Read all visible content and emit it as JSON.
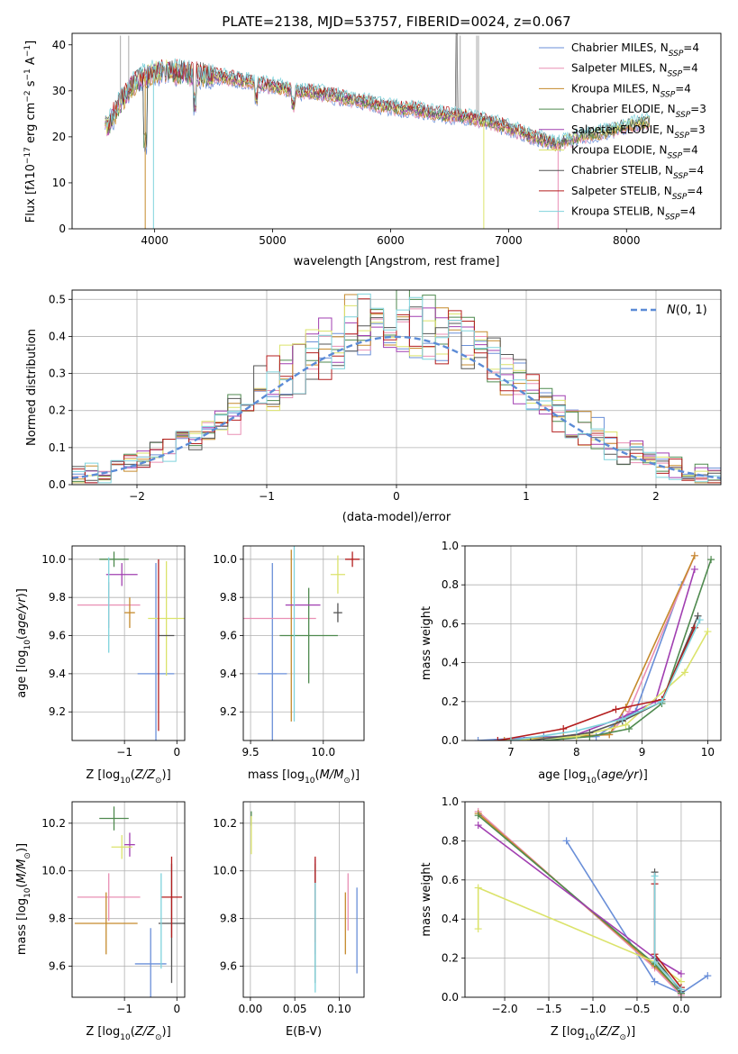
{
  "figure": {
    "title": "PLATE=2138, MJD=53757, FIBERID=0024, z=0.067"
  },
  "colors": [
    "#6a8fd8",
    "#e98fb4",
    "#c58a2c",
    "#4f8a4f",
    "#a13fb1",
    "#dbe36b",
    "#555555",
    "#b41e1e",
    "#7fd3dc"
  ],
  "chart_data": [
    {
      "id": "spectrum",
      "type": "line",
      "xlabel": "wavelength [Angstrom, rest frame]",
      "ylabel": "Flux [fλ10⁻¹⁷ erg cm⁻² s⁻¹ A⁻¹]",
      "xlim": [
        3300,
        8800
      ],
      "ylim": [
        0,
        42.5
      ],
      "xticks": [
        4000,
        5000,
        6000,
        7000,
        8000
      ],
      "yticks": [
        0,
        10,
        20,
        30,
        40
      ],
      "grid": false,
      "legend_position": "top-right",
      "continuum_x": [
        3600,
        3700,
        3800,
        3900,
        4000,
        4100,
        4200,
        4400,
        4600,
        4800,
        5000,
        5200,
        5400,
        5600,
        5800,
        6000,
        6200,
        6400,
        6600,
        6800,
        7000,
        7200,
        7400,
        7600,
        7800,
        8000,
        8200,
        8400
      ],
      "continuum_y": [
        22,
        27,
        31,
        33,
        34,
        34.5,
        34,
        33.5,
        33,
        32,
        31,
        30,
        29.5,
        28.5,
        27.5,
        26.5,
        26,
        25,
        24.5,
        23.5,
        22,
        20,
        18.5,
        20,
        21,
        22.5,
        23.5,
        24
      ],
      "series": [
        {
          "name": "Chabrier MILES, NSSP=4",
          "name_main": "Chabrier MILES, N",
          "name_sub": "SSP",
          "name_tail": "=4"
        },
        {
          "name": "Salpeter MILES, NSSP=4",
          "name_main": "Salpeter MILES, N",
          "name_sub": "SSP",
          "name_tail": "=4"
        },
        {
          "name": "Kroupa MILES, NSSP=4",
          "name_main": "Kroupa MILES, N",
          "name_sub": "SSP",
          "name_tail": "=4"
        },
        {
          "name": "Chabrier ELODIE, NSSP=3",
          "name_main": "Chabrier ELODIE, N",
          "name_sub": "SSP",
          "name_tail": "=3"
        },
        {
          "name": "Salpeter ELODIE, NSSP=3",
          "name_main": "Salpeter ELODIE, N",
          "name_sub": "SSP",
          "name_tail": "=3"
        },
        {
          "name": "Kroupa ELODIE, NSSP=4",
          "name_main": "Kroupa ELODIE, N",
          "name_sub": "SSP",
          "name_tail": "=4"
        },
        {
          "name": "Chabrier STELIB, NSSP=4",
          "name_main": "Chabrier STELIB, N",
          "name_sub": "SSP",
          "name_tail": "=4"
        },
        {
          "name": "Salpeter STELIB, NSSP=4",
          "name_main": "Salpeter STELIB, N",
          "name_sub": "SSP",
          "name_tail": "=4"
        },
        {
          "name": "Kroupa STELIB, NSSP=4",
          "name_main": "Kroupa STELIB, N",
          "name_sub": "SSP",
          "name_tail": "=4"
        }
      ]
    },
    {
      "id": "residuals",
      "type": "line",
      "xlabel": "(data-model)/error",
      "ylabel": "Normed distribution",
      "xlim": [
        -2.5,
        2.5
      ],
      "ylim": [
        0,
        0.525
      ],
      "xticks": [
        -2,
        -1,
        0,
        1,
        2
      ],
      "yticks": [
        0.0,
        0.1,
        0.2,
        0.3,
        0.4,
        0.5
      ],
      "grid": true,
      "legend_position": "top-right",
      "reference_curve": {
        "name": "N(0,1)",
        "mu": 0,
        "sigma": 1
      },
      "bin_width": 0.1
    },
    {
      "id": "age-z",
      "type": "scatter",
      "xlabel": "Z [log10(Z/Z⊙)]",
      "ylabel": "age [log10(age/yr)]",
      "xlim": [
        -2.0,
        0.15
      ],
      "ylim": [
        9.05,
        10.07
      ],
      "xticks": [
        -1,
        0
      ],
      "yticks": [
        9.2,
        9.4,
        9.6,
        9.8,
        10.0
      ],
      "grid": true,
      "points": [
        {
          "x": -0.4,
          "y": 9.4,
          "xerr": 0.35,
          "yerr": 0.58
        },
        {
          "x": -1.3,
          "y": 9.76,
          "xerr": 0.6,
          "yerr": 0.12
        },
        {
          "x": -0.9,
          "y": 9.72,
          "xerr": 0.1,
          "yerr": 0.08
        },
        {
          "x": -1.2,
          "y": 10.0,
          "xerr": 0.28,
          "yerr": 0.04
        },
        {
          "x": -1.05,
          "y": 9.92,
          "xerr": 0.3,
          "yerr": 0.06
        },
        {
          "x": -0.2,
          "y": 9.69,
          "xerr": 0.35,
          "yerr": 0.3
        },
        {
          "x": -0.2,
          "y": 9.6,
          "xerr": 0.15,
          "yerr": 0.0
        },
        {
          "x": -0.35,
          "y": 9.55,
          "xerr": 0.0,
          "yerr": 0.45
        },
        {
          "x": -1.3,
          "y": 9.76,
          "xerr": 0.0,
          "yerr": 0.25
        }
      ]
    },
    {
      "id": "age-mass",
      "type": "scatter",
      "xlabel": "mass [log10(M/M⊙)]",
      "ylabel": "",
      "xlim": [
        9.45,
        10.28
      ],
      "ylim": [
        9.05,
        10.07
      ],
      "xticks": [
        9.5,
        10.0
      ],
      "yticks": [
        9.2,
        9.4,
        9.6,
        9.8,
        10.0
      ],
      "grid": true,
      "points": [
        {
          "x": 9.65,
          "y": 9.4,
          "xerr": 0.1,
          "yerr": 0.58
        },
        {
          "x": 9.7,
          "y": 9.69,
          "xerr": 0.25,
          "yerr": 0.0
        },
        {
          "x": 9.78,
          "y": 9.6,
          "xerr": 0.0,
          "yerr": 0.45
        },
        {
          "x": 9.9,
          "y": 9.6,
          "xerr": 0.2,
          "yerr": 0.25
        },
        {
          "x": 9.86,
          "y": 9.76,
          "xerr": 0.12,
          "yerr": 0.0
        },
        {
          "x": 10.1,
          "y": 9.92,
          "xerr": 0.05,
          "yerr": 0.1
        },
        {
          "x": 10.1,
          "y": 9.72,
          "xerr": 0.03,
          "yerr": 0.05
        },
        {
          "x": 10.2,
          "y": 10.0,
          "xerr": 0.05,
          "yerr": 0.04
        },
        {
          "x": 9.8,
          "y": 9.7,
          "xerr": 0.0,
          "yerr": 0.55
        }
      ]
    },
    {
      "id": "massweight-age",
      "type": "line",
      "xlabel": "age [log10(age/yr)]",
      "ylabel": "mass weight",
      "xlim": [
        6.3,
        10.2
      ],
      "ylim": [
        0,
        1
      ],
      "xticks": [
        7,
        8,
        9,
        10
      ],
      "yticks": [
        0.0,
        0.2,
        0.4,
        0.6,
        0.8,
        1.0
      ],
      "grid": true,
      "series": [
        {
          "x": [
            6.5,
            7.5,
            8.3,
            8.9,
            9.6
          ],
          "y": [
            0.0,
            0.02,
            0.02,
            0.15,
            0.8
          ]
        },
        {
          "x": [
            6.8,
            7.8,
            8.5,
            8.8,
            9.8
          ],
          "y": [
            0.0,
            0.02,
            0.03,
            0.15,
            0.95
          ]
        },
        {
          "x": [
            6.9,
            7.8,
            8.5,
            8.75,
            9.8
          ],
          "y": [
            0.0,
            0.02,
            0.03,
            0.17,
            0.95
          ]
        },
        {
          "x": [
            7.5,
            8.2,
            8.8,
            9.3,
            10.05
          ],
          "y": [
            0.0,
            0.02,
            0.06,
            0.19,
            0.93
          ]
        },
        {
          "x": [
            7.2,
            8.0,
            8.7,
            9.2,
            9.8
          ],
          "y": [
            0.0,
            0.03,
            0.12,
            0.2,
            0.88
          ]
        },
        {
          "x": [
            7.0,
            8.0,
            8.75,
            9.65,
            10.0
          ],
          "y": [
            0.0,
            0.02,
            0.08,
            0.35,
            0.56
          ]
        },
        {
          "x": [
            7.3,
            8.2,
            8.7,
            9.3,
            9.85
          ],
          "y": [
            0.0,
            0.04,
            0.1,
            0.2,
            0.64
          ]
        },
        {
          "x": [
            6.8,
            7.8,
            8.6,
            9.3,
            9.8
          ],
          "y": [
            0.0,
            0.06,
            0.16,
            0.21,
            0.58
          ]
        },
        {
          "x": [
            7.0,
            8.0,
            8.7,
            9.3,
            9.88
          ],
          "y": [
            0.0,
            0.05,
            0.11,
            0.2,
            0.62
          ]
        }
      ]
    },
    {
      "id": "mass-z",
      "type": "scatter",
      "xlabel": "Z [log10(Z/Z⊙)]",
      "ylabel": "mass [log10(M/M⊙)]",
      "xlim": [
        -2.0,
        0.15
      ],
      "ylim": [
        9.47,
        10.29
      ],
      "xticks": [
        -1,
        0
      ],
      "yticks": [
        9.6,
        9.8,
        10.0,
        10.2
      ],
      "grid": true,
      "points": [
        {
          "x": -0.5,
          "y": 9.61,
          "xerr": 0.3,
          "yerr": 0.15
        },
        {
          "x": -1.3,
          "y": 9.89,
          "xerr": 0.6,
          "yerr": 0.1
        },
        {
          "x": -1.35,
          "y": 9.78,
          "xerr": 0.6,
          "yerr": 0.13
        },
        {
          "x": -1.2,
          "y": 10.22,
          "xerr": 0.28,
          "yerr": 0.05
        },
        {
          "x": -0.9,
          "y": 10.11,
          "xerr": 0.1,
          "yerr": 0.05
        },
        {
          "x": -1.05,
          "y": 10.1,
          "xerr": 0.2,
          "yerr": 0.05
        },
        {
          "x": -0.1,
          "y": 9.78,
          "xerr": 0.25,
          "yerr": 0.25
        },
        {
          "x": -0.1,
          "y": 9.89,
          "xerr": 0.2,
          "yerr": 0.17
        },
        {
          "x": -0.3,
          "y": 9.79,
          "xerr": 0.0,
          "yerr": 0.2
        }
      ]
    },
    {
      "id": "mass-ebv",
      "type": "scatter",
      "xlabel": "E(B-V)",
      "ylabel": "",
      "xlim": [
        -0.008,
        0.128
      ],
      "ylim": [
        9.47,
        10.29
      ],
      "xticks": [
        0.0,
        0.05,
        0.1
      ],
      "xticklabels": [
        "0.00",
        "0.05",
        "0.10"
      ],
      "yticks": [
        9.6,
        9.8,
        10.0,
        10.2
      ],
      "grid": true,
      "points": [
        {
          "x": 0.12,
          "y": 9.75,
          "xerr": 0,
          "yerr": 0.18
        },
        {
          "x": 0.11,
          "y": 9.87,
          "xerr": 0,
          "yerr": 0.12
        },
        {
          "x": 0.107,
          "y": 9.78,
          "xerr": 0,
          "yerr": 0.13
        },
        {
          "x": 0.001,
          "y": 10.22,
          "xerr": 0,
          "yerr": 0.03
        },
        {
          "x": 0.073,
          "y": 9.85,
          "xerr": 0,
          "yerr": 0.2
        },
        {
          "x": 0.001,
          "y": 10.15,
          "xerr": 0,
          "yerr": 0.08
        },
        {
          "x": 0.073,
          "y": 9.78,
          "xerr": 0,
          "yerr": 0.25
        },
        {
          "x": 0.073,
          "y": 9.88,
          "xerr": 0,
          "yerr": 0.18
        },
        {
          "x": 0.073,
          "y": 9.72,
          "xerr": 0,
          "yerr": 0.23
        }
      ]
    },
    {
      "id": "massweight-z",
      "type": "line",
      "xlabel": "Z [log10(Z/Z⊙)]",
      "ylabel": "mass weight",
      "xlim": [
        -2.45,
        0.45
      ],
      "ylim": [
        0,
        1
      ],
      "xticks": [
        -2.0,
        -1.5,
        -1.0,
        -0.5,
        0.0
      ],
      "xticklabels": [
        "−2.0",
        "−1.5",
        "−1.0",
        "−0.5",
        "0.0"
      ],
      "yticks": [
        0.0,
        0.2,
        0.4,
        0.6,
        0.8,
        1.0
      ],
      "grid": true,
      "series": [
        {
          "x": [
            0.3,
            0.0,
            -0.3,
            -1.3
          ],
          "y": [
            0.11,
            0.02,
            0.08,
            0.8
          ]
        },
        {
          "x": [
            0.0,
            -0.3,
            -2.3
          ],
          "y": [
            0.01,
            0.15,
            0.95
          ]
        },
        {
          "x": [
            0.0,
            -0.3,
            -2.3
          ],
          "y": [
            0.02,
            0.16,
            0.94
          ]
        },
        {
          "x": [
            0.0,
            -0.3,
            -2.3
          ],
          "y": [
            0.02,
            0.17,
            0.93
          ]
        },
        {
          "x": [
            0.0,
            -0.3,
            -2.3
          ],
          "y": [
            0.12,
            0.2,
            0.88
          ]
        },
        {
          "x": [
            0.0,
            -0.3,
            -2.3,
            -2.3
          ],
          "y": [
            0.08,
            0.18,
            0.56,
            0.35
          ]
        },
        {
          "x": [
            0.0,
            -0.3,
            -0.3
          ],
          "y": [
            0.03,
            0.2,
            0.64
          ]
        },
        {
          "x": [
            0.0,
            -0.3,
            -0.3
          ],
          "y": [
            0.05,
            0.22,
            0.58
          ]
        },
        {
          "x": [
            0.0,
            -0.3,
            -0.3
          ],
          "y": [
            0.04,
            0.18,
            0.62
          ]
        }
      ]
    }
  ]
}
